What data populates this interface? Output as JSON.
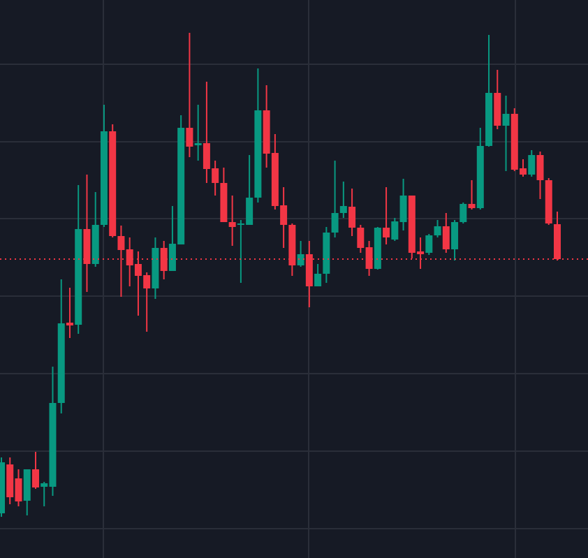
{
  "chart_data": {
    "type": "candlestick",
    "ylim": [
      0,
      799
    ],
    "up_color": "#089981",
    "down_color": "#f23645",
    "open": [
      64,
      134,
      114,
      82,
      127,
      102,
      102,
      222,
      337,
      334,
      471,
      421,
      477,
      611,
      461,
      442,
      421,
      405,
      386,
      444,
      411,
      449,
      616,
      591,
      594,
      558,
      537,
      481,
      477,
      477,
      516,
      641,
      580,
      505,
      477,
      419,
      435,
      389,
      407,
      466,
      494,
      503,
      473,
      445,
      414,
      473,
      456,
      481,
      519,
      439,
      437,
      462,
      475,
      442,
      481,
      507,
      501,
      590,
      666,
      619,
      636,
      558,
      549,
      577,
      541,
      478
    ],
    "high": [
      144,
      144,
      127,
      127,
      152,
      109,
      274,
      399,
      387,
      534,
      549,
      524,
      649,
      621,
      476,
      459,
      439,
      409,
      459,
      454,
      504,
      634,
      752,
      649,
      682,
      569,
      559,
      519,
      484,
      577,
      701,
      677,
      607,
      531,
      479,
      454,
      454,
      421,
      474,
      569,
      539,
      529,
      477,
      454,
      474,
      531,
      487,
      543,
      519,
      459,
      464,
      484,
      494,
      484,
      509,
      541,
      616,
      749,
      699,
      662,
      644,
      571,
      584,
      582,
      544,
      496
    ],
    "low": [
      59,
      77,
      74,
      61,
      99,
      74,
      89,
      207,
      315,
      321,
      381,
      417,
      474,
      459,
      374,
      389,
      347,
      324,
      371,
      399,
      411,
      449,
      574,
      569,
      537,
      519,
      481,
      447,
      394,
      477,
      509,
      559,
      499,
      444,
      404,
      417,
      359,
      389,
      394,
      459,
      487,
      461,
      437,
      404,
      413,
      449,
      454,
      469,
      429,
      414,
      434,
      459,
      437,
      426,
      479,
      499,
      499,
      589,
      614,
      554,
      554,
      546,
      546,
      514,
      477,
      426
    ],
    "close": [
      137,
      87,
      81,
      127,
      101,
      107,
      222,
      336,
      333,
      471,
      421,
      477,
      611,
      461,
      441,
      419,
      404,
      386,
      444,
      411,
      450,
      616,
      589,
      594,
      557,
      537,
      481,
      474,
      479,
      516,
      641,
      579,
      504,
      477,
      419,
      435,
      389,
      407,
      466,
      494,
      504,
      473,
      444,
      414,
      473,
      459,
      482,
      519,
      437,
      435,
      462,
      475,
      442,
      481,
      507,
      501,
      590,
      666,
      619,
      636,
      556,
      549,
      577,
      541,
      479,
      428
    ]
  }
}
